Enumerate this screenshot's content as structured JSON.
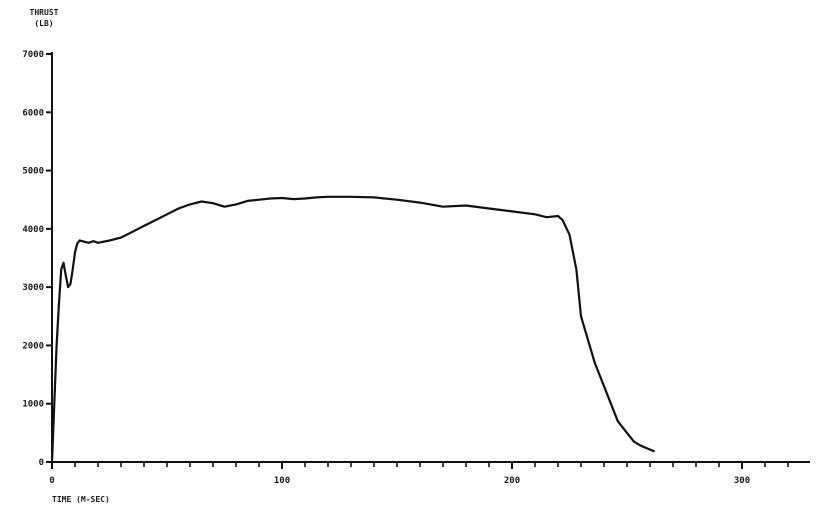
{
  "chart_data": {
    "type": "line",
    "title": "",
    "ylabel_line1": "THRUST",
    "ylabel_line2": "(LB)",
    "xlabel": "TIME (M-SEC)",
    "xlim": [
      0,
      350
    ],
    "ylim": [
      0,
      7000
    ],
    "x_ticks": [
      0,
      100,
      200,
      300
    ],
    "x_tick_labels": [
      "0",
      "100",
      "200",
      "300"
    ],
    "x_minor_step": 10,
    "y_ticks": [
      0,
      1000,
      2000,
      3000,
      4000,
      5000,
      6000,
      7000
    ],
    "y_tick_labels": [
      "0",
      "1000",
      "2000",
      "3000",
      "4000",
      "5000",
      "6000",
      "7000"
    ],
    "grid": false,
    "legend": "none",
    "line_color": "#111111",
    "series": [
      {
        "x": [
          0,
          1,
          2,
          3,
          4,
          5,
          6,
          7,
          8,
          9,
          10,
          11,
          12,
          14,
          16,
          18,
          20,
          25,
          30,
          35,
          40,
          45,
          50,
          55,
          60,
          65,
          70,
          75,
          80,
          85,
          90,
          95,
          100,
          105,
          110,
          115,
          120,
          130,
          140,
          150,
          160,
          170,
          180,
          190,
          200,
          210,
          215,
          220,
          222,
          225,
          228,
          230,
          233,
          236,
          240,
          243,
          246,
          250,
          253,
          256,
          259,
          262
        ],
        "y": [
          0,
          1000,
          2000,
          2700,
          3300,
          3420,
          3200,
          3000,
          3050,
          3300,
          3600,
          3750,
          3800,
          3780,
          3760,
          3790,
          3760,
          3800,
          3850,
          3950,
          4050,
          4150,
          4250,
          4350,
          4420,
          4470,
          4440,
          4380,
          4420,
          4480,
          4500,
          4520,
          4530,
          4510,
          4520,
          4540,
          4550,
          4550,
          4540,
          4500,
          4450,
          4380,
          4400,
          4350,
          4300,
          4250,
          4200,
          4220,
          4150,
          3900,
          3300,
          2500,
          2100,
          1700,
          1300,
          1000,
          700,
          500,
          350,
          280,
          230,
          180
        ]
      }
    ]
  }
}
